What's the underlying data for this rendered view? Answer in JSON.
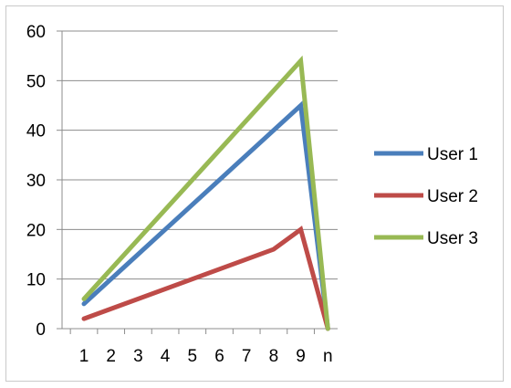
{
  "chart_data": {
    "type": "line",
    "title": "",
    "xlabel": "",
    "ylabel": "",
    "categories": [
      "1",
      "2",
      "3",
      "4",
      "5",
      "6",
      "7",
      "8",
      "9",
      "n"
    ],
    "ylim": [
      0,
      60
    ],
    "yticks": [
      0,
      10,
      20,
      30,
      40,
      50,
      60
    ],
    "grid": true,
    "legend_position": "right",
    "series": [
      {
        "name": "User 1",
        "color": "#4a7ebb",
        "points": [
          {
            "x": "1",
            "y": 5
          },
          {
            "x": "9",
            "y": 45
          },
          {
            "x": "n",
            "y": 0
          }
        ]
      },
      {
        "name": "User 2",
        "color": "#be4b48",
        "points": [
          {
            "x": "1",
            "y": 2
          },
          {
            "x": "8",
            "y": 16
          },
          {
            "x": "9",
            "y": 20
          },
          {
            "x": "n",
            "y": 0
          }
        ]
      },
      {
        "name": "User 3",
        "color": "#98b954",
        "points": [
          {
            "x": "1",
            "y": 6
          },
          {
            "x": "9",
            "y": 54
          },
          {
            "x": "n",
            "y": 0
          }
        ]
      }
    ]
  }
}
